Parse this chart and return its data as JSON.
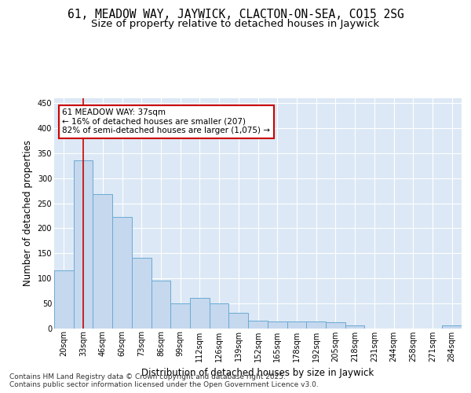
{
  "title_line1": "61, MEADOW WAY, JAYWICK, CLACTON-ON-SEA, CO15 2SG",
  "title_line2": "Size of property relative to detached houses in Jaywick",
  "xlabel": "Distribution of detached houses by size in Jaywick",
  "ylabel": "Number of detached properties",
  "categories": [
    "20sqm",
    "33sqm",
    "46sqm",
    "60sqm",
    "73sqm",
    "86sqm",
    "99sqm",
    "112sqm",
    "126sqm",
    "139sqm",
    "152sqm",
    "165sqm",
    "178sqm",
    "192sqm",
    "205sqm",
    "218sqm",
    "231sqm",
    "244sqm",
    "258sqm",
    "271sqm",
    "284sqm"
  ],
  "values": [
    115,
    335,
    268,
    222,
    140,
    95,
    50,
    60,
    50,
    30,
    15,
    13,
    13,
    13,
    12,
    5,
    0,
    0,
    0,
    0,
    5
  ],
  "bar_color": "#c5d8ee",
  "bar_edge_color": "#6aaad4",
  "highlight_bar_idx": 1,
  "highlight_color": "#cc0000",
  "annotation_line1": "61 MEADOW WAY: 37sqm",
  "annotation_line2": "← 16% of detached houses are smaller (207)",
  "annotation_line3": "82% of semi-detached houses are larger (1,075) →",
  "annotation_box_color": "#cc0000",
  "ylim": [
    0,
    460
  ],
  "yticks": [
    0,
    50,
    100,
    150,
    200,
    250,
    300,
    350,
    400,
    450
  ],
  "bg_color": "#dce8f5",
  "grid_color": "#ffffff",
  "footer_text": "Contains HM Land Registry data © Crown copyright and database right 2025.\nContains public sector information licensed under the Open Government Licence v3.0.",
  "title_fontsize": 10.5,
  "subtitle_fontsize": 9.5,
  "axis_label_fontsize": 8.5,
  "tick_fontsize": 7,
  "footer_fontsize": 6.5,
  "annotation_fontsize": 7.5
}
